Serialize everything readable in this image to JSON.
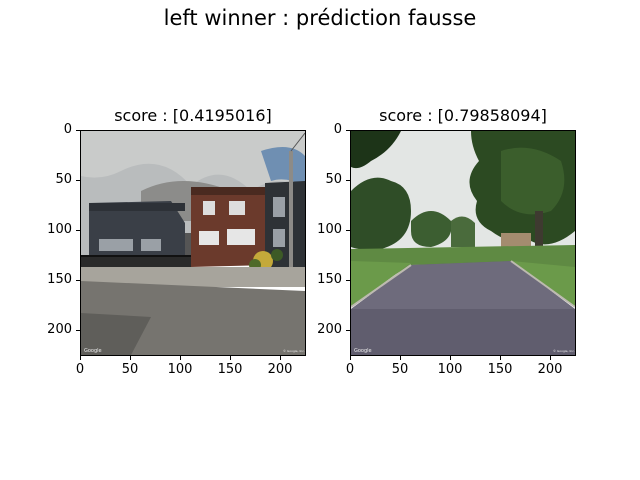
{
  "figure": {
    "title": "left winner : prédiction fausse"
  },
  "panels": [
    {
      "title": "score : [0.4195016]",
      "xticks": [
        "0",
        "50",
        "100",
        "150",
        "200"
      ],
      "yticks": [
        "0",
        "50",
        "100",
        "150",
        "200"
      ],
      "image": "street-view-houses-brick",
      "watermark_left": "Google",
      "watermark_right": "© Google, Inc."
    },
    {
      "title": "score : [0.79858094]",
      "xticks": [
        "0",
        "50",
        "100",
        "150",
        "200"
      ],
      "yticks": [
        "0",
        "50",
        "100",
        "150",
        "200"
      ],
      "image": "street-view-road-trees",
      "watermark_left": "Google",
      "watermark_right": "© Google, Inc."
    }
  ]
}
